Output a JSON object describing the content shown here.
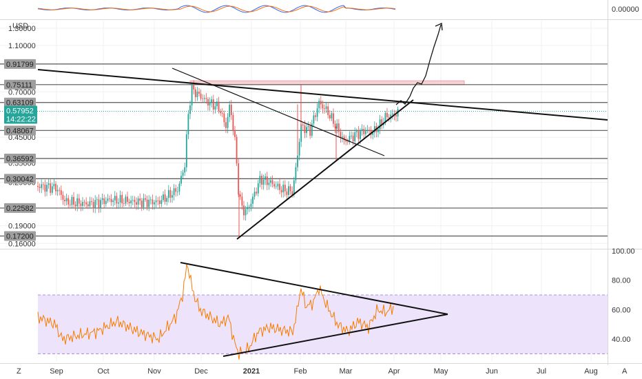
{
  "chart_data": [
    {
      "type": "candlestick",
      "currency_label": "USD",
      "y_scale": "log",
      "ylim": [
        0.155,
        1.4
      ],
      "y_ticks": [
        "1.30000",
        "1.10000",
        "0.70000",
        "0.45000",
        "0.35000",
        "0.29000",
        "0.19000",
        "0.16000"
      ],
      "y_tick_values": [
        1.3,
        1.1,
        0.7,
        0.45,
        0.35,
        0.29,
        0.19,
        0.16
      ],
      "x_ticks": [
        "Sep",
        "Oct",
        "Nov",
        "Dec",
        "2021",
        "Feb",
        "Mar",
        "Apr",
        "May",
        "Jun",
        "Jul",
        "Aug"
      ],
      "levels": [
        {
          "label": "0.91799",
          "value": 0.91799
        },
        {
          "label": "0.75111",
          "value": 0.75111
        },
        {
          "label": "0.63109",
          "value": 0.63109
        },
        {
          "label": "0.48067",
          "value": 0.48067
        },
        {
          "label": "0.36592",
          "value": 0.36592
        },
        {
          "label": "0.30042",
          "value": 0.30042
        },
        {
          "label": "0.22582",
          "value": 0.22582
        },
        {
          "label": "0.17200",
          "value": 0.172
        }
      ],
      "last_price": {
        "label": "0.57952",
        "value": 0.57952,
        "countdown": "14:22:22"
      },
      "resistance_zone": [
        0.75,
        0.78
      ],
      "colors": {
        "up": "#26a69a",
        "down": "#ef5350",
        "level": "#555555",
        "zone": "#f4c7c9"
      }
    },
    {
      "type": "line",
      "series": [
        {
          "name": "",
          "color": "#f57c00"
        }
      ],
      "ylim": [
        25,
        100
      ],
      "y_ticks": [
        "100.00",
        "80.00",
        "60.00",
        "40.00"
      ],
      "y_tick_values": [
        100,
        80,
        60,
        40
      ],
      "band": [
        30,
        70
      ],
      "colors": {
        "band": "#ede4fb",
        "band_edge": "#9575cd"
      }
    }
  ],
  "top_indicator": {
    "value_label": "0.00000"
  },
  "footer": {
    "left_label": "Z",
    "right_label": "A"
  }
}
